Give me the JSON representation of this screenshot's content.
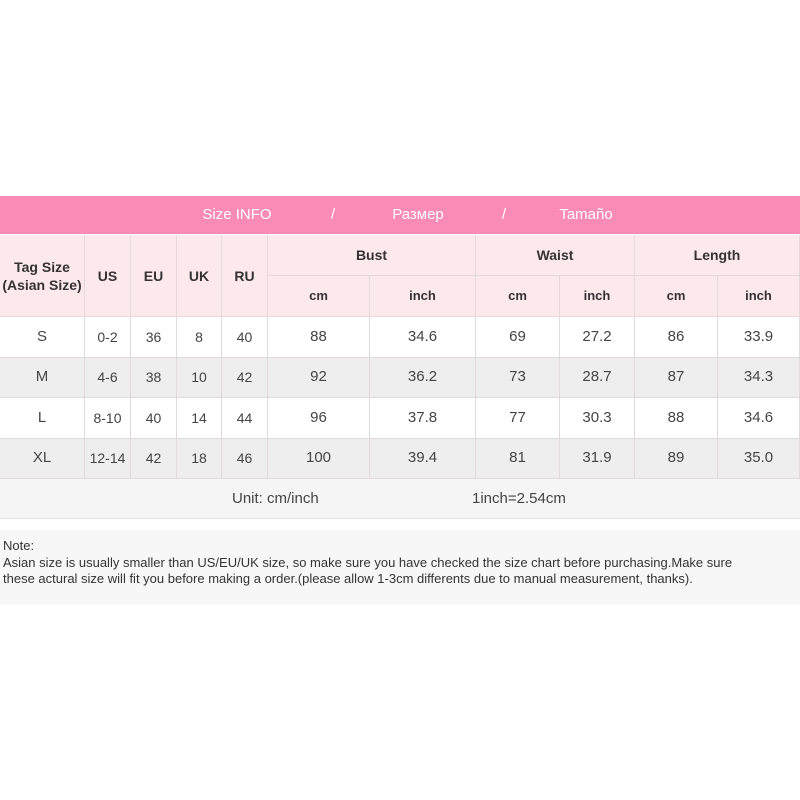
{
  "banner": [
    "Size INFO",
    "/",
    "Размер",
    "/",
    "Tamaño"
  ],
  "table": {
    "head": {
      "tag_size": [
        "Tag Size",
        "(Asian Size)"
      ],
      "simple": [
        "US",
        "EU",
        "UK",
        "RU"
      ],
      "groups": [
        {
          "name": "Bust",
          "units": [
            "cm",
            "inch"
          ]
        },
        {
          "name": "Waist",
          "units": [
            "cm",
            "inch"
          ]
        },
        {
          "name": "Length",
          "units": [
            "cm",
            "inch"
          ]
        }
      ]
    },
    "rows": [
      [
        "S",
        "0-2",
        "36",
        "8",
        "40",
        "88",
        "34.6",
        "69",
        "27.2",
        "86",
        "33.9"
      ],
      [
        "M",
        "4-6",
        "38",
        "10",
        "42",
        "92",
        "36.2",
        "73",
        "28.7",
        "87",
        "34.3"
      ],
      [
        "L",
        "8-10",
        "40",
        "14",
        "44",
        "96",
        "37.8",
        "77",
        "30.3",
        "88",
        "34.6"
      ],
      [
        "XL",
        "12-14",
        "42",
        "18",
        "46",
        "100",
        "39.4",
        "81",
        "31.9",
        "89",
        "35.0"
      ]
    ],
    "footer": {
      "unit": "Unit: cm/inch",
      "conversion": "1inch=2.54cm"
    }
  },
  "note": {
    "label": "Note:",
    "lines": [
      "Asian size is usually smaller than US/EU/UK size, so make sure you have checked the size chart before purchasing.Make sure",
      "these actural size will fit you before making a order.(please allow 1-3cm differents due to manual measurement, thanks)."
    ]
  }
}
